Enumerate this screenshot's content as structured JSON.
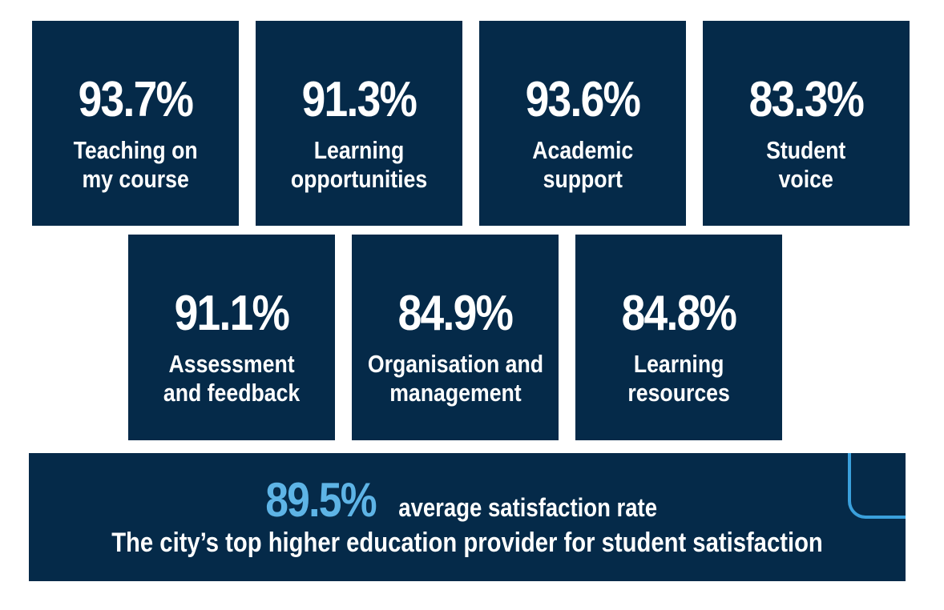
{
  "tiles": [
    {
      "value": "93.7%",
      "label_line1": "Teaching on",
      "label_line2": "my course"
    },
    {
      "value": "91.3%",
      "label_line1": "Learning",
      "label_line2": "opportunities"
    },
    {
      "value": "93.6%",
      "label_line1": "Academic",
      "label_line2": "support"
    },
    {
      "value": "83.3%",
      "label_line1": "Student",
      "label_line2": "voice"
    },
    {
      "value": "91.1%",
      "label_line1": "Assessment",
      "label_line2": "and feedback"
    },
    {
      "value": "84.9%",
      "label_line1": "Organisation and",
      "label_line2": "management"
    },
    {
      "value": "84.8%",
      "label_line1": "Learning",
      "label_line2": "resources"
    }
  ],
  "summary": {
    "average_value": "89.5%",
    "average_label": "average satisfaction rate",
    "tagline": "The city’s top higher education provider for student satisfaction"
  },
  "colors": {
    "tile_background": "#052a49",
    "accent": "#5eb4e6",
    "text": "#ffffff"
  }
}
